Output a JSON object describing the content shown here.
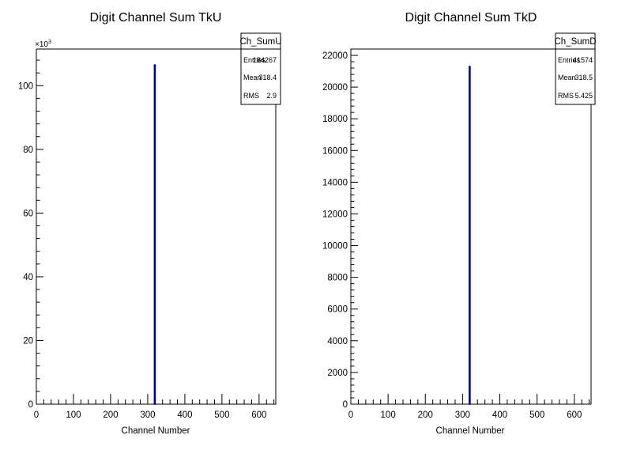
{
  "chart_data": [
    {
      "type": "bar",
      "title": "Digit Channel Sum TkU",
      "xlabel": "Channel Number",
      "ylabel": "",
      "xlim": [
        0,
        645
      ],
      "ylim": [
        0,
        111500
      ],
      "y_multiplier_label": "×10",
      "y_multiplier_exp": "3",
      "x_ticks": [
        0,
        100,
        200,
        300,
        400,
        500,
        600
      ],
      "y_ticks": [
        0,
        20000,
        40000,
        60000,
        80000,
        100000
      ],
      "y_tick_labels": [
        "0",
        "20",
        "40",
        "60",
        "80",
        "100"
      ],
      "peak": {
        "x": 318,
        "width": 1,
        "value": 106500
      },
      "line_color": "#000080",
      "stats": {
        "name": "Ch_SumU",
        "rows": [
          {
            "label": "Entries",
            "value": "184267"
          },
          {
            "label": "Mean",
            "value": "318.4"
          },
          {
            "label": "RMS",
            "value": "2.9"
          }
        ]
      }
    },
    {
      "type": "bar",
      "title": "Digit Channel Sum TkD",
      "xlabel": "Channel Number",
      "ylabel": "",
      "xlim": [
        0,
        645
      ],
      "ylim": [
        0,
        22400
      ],
      "x_ticks": [
        0,
        100,
        200,
        300,
        400,
        500,
        600
      ],
      "y_ticks": [
        0,
        2000,
        4000,
        6000,
        8000,
        10000,
        12000,
        14000,
        16000,
        18000,
        20000,
        22000
      ],
      "y_tick_labels": [
        "0",
        "2000",
        "4000",
        "6000",
        "8000",
        "10000",
        "12000",
        "14000",
        "16000",
        "18000",
        "20000",
        "22000"
      ],
      "peak": {
        "x": 318,
        "width": 1,
        "value": 21300
      },
      "line_color": "#000080",
      "stats": {
        "name": "Ch_SumD",
        "rows": [
          {
            "label": "Entries",
            "value": "41574"
          },
          {
            "label": "Mean",
            "value": "318.5"
          },
          {
            "label": "RMS",
            "value": "5.425"
          }
        ]
      }
    }
  ]
}
